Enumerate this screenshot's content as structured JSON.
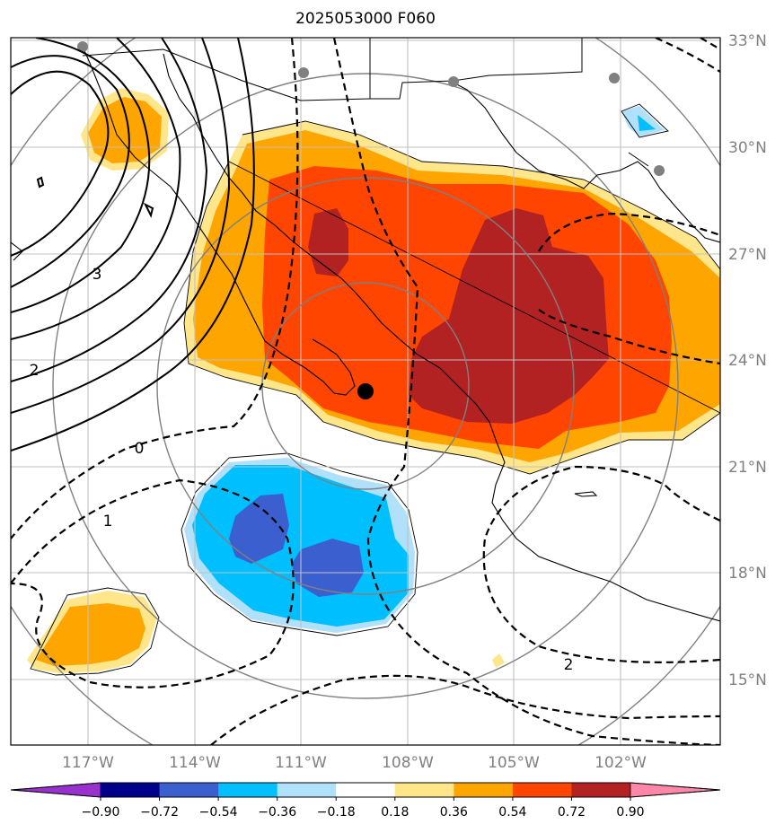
{
  "title": "2025053000 F060",
  "lat_labels": [
    "33°N",
    "30°N",
    "27°N",
    "24°N",
    "21°N",
    "18°N",
    "15°N"
  ],
  "lon_labels": [
    "117°W",
    "114°W",
    "111°W",
    "108°W",
    "105°W",
    "102°W"
  ],
  "contour_labels": [
    "3",
    "2",
    "0",
    "1",
    "2"
  ],
  "colorbar": {
    "ticks": [
      "−0.90",
      "−0.72",
      "−0.54",
      "−0.36",
      "−0.18",
      "0.18",
      "0.36",
      "0.54",
      "0.72",
      "0.90"
    ],
    "colors": [
      "#9932cc",
      "#00008b",
      "#3b5fcf",
      "#00bfff",
      "#b0e0fa",
      "#ffffff",
      "#ffe68a",
      "#ffa500",
      "#ff4500",
      "#b22222",
      "#ff88aa"
    ]
  },
  "fill_colors": {
    "neg1": "#b0e0fa",
    "neg2": "#00bfff",
    "neg3": "#3b5fcf",
    "pos1": "#ffe68a",
    "pos2": "#ffa500",
    "pos3": "#ff4500",
    "pos4": "#b22222"
  },
  "marker": "storm-center-dot"
}
